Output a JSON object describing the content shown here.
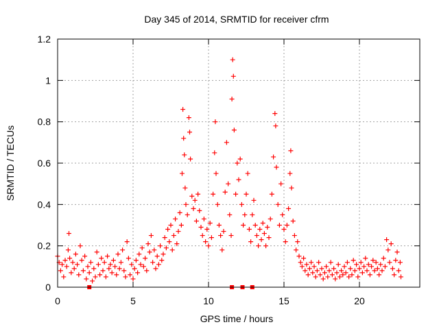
{
  "chart_data": {
    "type": "scatter",
    "title": "Day 345 of 2014, SRMTID for receiver cfrm",
    "xlabel": "GPS time / hours",
    "ylabel": "SRMTID / TECUs",
    "xlim": [
      0,
      24
    ],
    "ylim": [
      0,
      1.2
    ],
    "x_ticks": [
      0,
      5,
      10,
      15,
      20
    ],
    "x_tick_labels": [
      "0",
      "5",
      "10",
      "15",
      "20"
    ],
    "y_ticks": [
      0,
      0.2,
      0.4,
      0.6,
      0.8,
      1,
      1.2
    ],
    "y_tick_labels": [
      "0",
      "0.2",
      "0.4",
      "0.6",
      "0.8",
      "1",
      "1.2"
    ],
    "grid": true,
    "marker_color": "#ff0000",
    "series": [
      {
        "name": "SRMTID",
        "marker": "plus",
        "points": [
          [
            0.0,
            0.15
          ],
          [
            0.1,
            0.12
          ],
          [
            0.2,
            0.08
          ],
          [
            0.3,
            0.11
          ],
          [
            0.4,
            0.05
          ],
          [
            0.5,
            0.13
          ],
          [
            0.6,
            0.1
          ],
          [
            0.7,
            0.18
          ],
          [
            0.75,
            0.26
          ],
          [
            0.8,
            0.14
          ],
          [
            0.9,
            0.07
          ],
          [
            1.0,
            0.12
          ],
          [
            1.1,
            0.09
          ],
          [
            1.2,
            0.16
          ],
          [
            1.3,
            0.11
          ],
          [
            1.4,
            0.06
          ],
          [
            1.5,
            0.2
          ],
          [
            1.6,
            0.13
          ],
          [
            1.7,
            0.08
          ],
          [
            1.8,
            0.15
          ],
          [
            1.9,
            0.04
          ],
          [
            2.0,
            0.1
          ],
          [
            2.1,
            0.07
          ],
          [
            2.2,
            0.12
          ],
          [
            2.3,
            0.03
          ],
          [
            2.4,
            0.09
          ],
          [
            2.5,
            0.05
          ],
          [
            2.6,
            0.17
          ],
          [
            2.7,
            0.11
          ],
          [
            2.8,
            0.06
          ],
          [
            2.9,
            0.14
          ],
          [
            3.0,
            0.08
          ],
          [
            3.1,
            0.12
          ],
          [
            3.2,
            0.05
          ],
          [
            3.3,
            0.15
          ],
          [
            3.4,
            0.09
          ],
          [
            3.5,
            0.11
          ],
          [
            3.6,
            0.07
          ],
          [
            3.7,
            0.13
          ],
          [
            3.8,
            0.1
          ],
          [
            3.9,
            0.06
          ],
          [
            4.0,
            0.16
          ],
          [
            4.1,
            0.09
          ],
          [
            4.2,
            0.12
          ],
          [
            4.3,
            0.18
          ],
          [
            4.4,
            0.08
          ],
          [
            4.5,
            0.05
          ],
          [
            4.6,
            0.22
          ],
          [
            4.7,
            0.14
          ],
          [
            4.8,
            0.06
          ],
          [
            4.9,
            0.11
          ],
          [
            5.0,
            0.04
          ],
          [
            5.1,
            0.09
          ],
          [
            5.2,
            0.13
          ],
          [
            5.3,
            0.07
          ],
          [
            5.4,
            0.16
          ],
          [
            5.5,
            0.11
          ],
          [
            5.6,
            0.19
          ],
          [
            5.7,
            0.1
          ],
          [
            5.8,
            0.14
          ],
          [
            5.9,
            0.08
          ],
          [
            6.0,
            0.21
          ],
          [
            6.1,
            0.17
          ],
          [
            6.2,
            0.25
          ],
          [
            6.3,
            0.12
          ],
          [
            6.4,
            0.18
          ],
          [
            6.5,
            0.09
          ],
          [
            6.6,
            0.15
          ],
          [
            6.7,
            0.11
          ],
          [
            6.8,
            0.2
          ],
          [
            6.9,
            0.13
          ],
          [
            7.0,
            0.16
          ],
          [
            7.1,
            0.24
          ],
          [
            7.2,
            0.19
          ],
          [
            7.3,
            0.28
          ],
          [
            7.4,
            0.22
          ],
          [
            7.5,
            0.3
          ],
          [
            7.6,
            0.18
          ],
          [
            7.7,
            0.25
          ],
          [
            7.8,
            0.33
          ],
          [
            7.9,
            0.21
          ],
          [
            8.0,
            0.27
          ],
          [
            8.1,
            0.36
          ],
          [
            8.2,
            0.3
          ],
          [
            8.25,
            0.55
          ],
          [
            8.3,
            0.86
          ],
          [
            8.35,
            0.72
          ],
          [
            8.4,
            0.64
          ],
          [
            8.45,
            0.48
          ],
          [
            8.5,
            0.4
          ],
          [
            8.6,
            0.35
          ],
          [
            8.7,
            0.82
          ],
          [
            8.75,
            0.75
          ],
          [
            8.8,
            0.62
          ],
          [
            8.9,
            0.44
          ],
          [
            9.0,
            0.38
          ],
          [
            9.1,
            0.42
          ],
          [
            9.2,
            0.32
          ],
          [
            9.3,
            0.45
          ],
          [
            9.4,
            0.37
          ],
          [
            9.5,
            0.29
          ],
          [
            9.6,
            0.25
          ],
          [
            9.7,
            0.33
          ],
          [
            9.8,
            0.22
          ],
          [
            9.9,
            0.28
          ],
          [
            10.0,
            0.2
          ],
          [
            10.1,
            0.31
          ],
          [
            10.2,
            0.24
          ],
          [
            10.3,
            0.45
          ],
          [
            10.4,
            0.65
          ],
          [
            10.45,
            0.8
          ],
          [
            10.5,
            0.55
          ],
          [
            10.6,
            0.4
          ],
          [
            10.7,
            0.3
          ],
          [
            10.8,
            0.25
          ],
          [
            10.9,
            0.18
          ],
          [
            11.0,
            0.27
          ],
          [
            11.1,
            0.46
          ],
          [
            11.2,
            0.7
          ],
          [
            11.3,
            0.5
          ],
          [
            11.4,
            0.35
          ],
          [
            11.5,
            0.25
          ],
          [
            11.55,
            0.91
          ],
          [
            11.6,
            1.1
          ],
          [
            11.65,
            1.02
          ],
          [
            11.7,
            0.76
          ],
          [
            11.8,
            0.45
          ],
          [
            11.9,
            0.6
          ],
          [
            12.0,
            0.52
          ],
          [
            12.1,
            0.62
          ],
          [
            12.2,
            0.4
          ],
          [
            12.3,
            0.3
          ],
          [
            12.4,
            0.35
          ],
          [
            12.5,
            0.45
          ],
          [
            12.6,
            0.55
          ],
          [
            12.7,
            0.28
          ],
          [
            12.8,
            0.22
          ],
          [
            12.9,
            0.35
          ],
          [
            13.0,
            0.42
          ],
          [
            13.1,
            0.3
          ],
          [
            13.2,
            0.25
          ],
          [
            13.3,
            0.2
          ],
          [
            13.4,
            0.28
          ],
          [
            13.5,
            0.23
          ],
          [
            13.6,
            0.31
          ],
          [
            13.7,
            0.26
          ],
          [
            13.8,
            0.2
          ],
          [
            13.9,
            0.29
          ],
          [
            14.0,
            0.24
          ],
          [
            14.1,
            0.33
          ],
          [
            14.2,
            0.45
          ],
          [
            14.3,
            0.63
          ],
          [
            14.4,
            0.84
          ],
          [
            14.45,
            0.78
          ],
          [
            14.5,
            0.58
          ],
          [
            14.6,
            0.4
          ],
          [
            14.7,
            0.3
          ],
          [
            14.8,
            0.5
          ],
          [
            14.9,
            0.35
          ],
          [
            15.0,
            0.28
          ],
          [
            15.1,
            0.22
          ],
          [
            15.2,
            0.3
          ],
          [
            15.3,
            0.38
          ],
          [
            15.4,
            0.55
          ],
          [
            15.45,
            0.66
          ],
          [
            15.5,
            0.48
          ],
          [
            15.6,
            0.32
          ],
          [
            15.7,
            0.25
          ],
          [
            15.8,
            0.18
          ],
          [
            15.9,
            0.22
          ],
          [
            16.0,
            0.15
          ],
          [
            16.1,
            0.12
          ],
          [
            16.2,
            0.1
          ],
          [
            16.3,
            0.14
          ],
          [
            16.4,
            0.08
          ],
          [
            16.5,
            0.11
          ],
          [
            16.6,
            0.06
          ],
          [
            16.7,
            0.09
          ],
          [
            16.8,
            0.12
          ],
          [
            16.9,
            0.07
          ],
          [
            17.0,
            0.1
          ],
          [
            17.1,
            0.05
          ],
          [
            17.2,
            0.08
          ],
          [
            17.3,
            0.12
          ],
          [
            17.4,
            0.06
          ],
          [
            17.5,
            0.09
          ],
          [
            17.6,
            0.04
          ],
          [
            17.7,
            0.07
          ],
          [
            17.8,
            0.1
          ],
          [
            17.9,
            0.05
          ],
          [
            18.0,
            0.08
          ],
          [
            18.1,
            0.12
          ],
          [
            18.2,
            0.06
          ],
          [
            18.3,
            0.09
          ],
          [
            18.4,
            0.04
          ],
          [
            18.5,
            0.07
          ],
          [
            18.6,
            0.11
          ],
          [
            18.7,
            0.05
          ],
          [
            18.8,
            0.08
          ],
          [
            18.9,
            0.06
          ],
          [
            19.0,
            0.1
          ],
          [
            19.1,
            0.07
          ],
          [
            19.2,
            0.12
          ],
          [
            19.3,
            0.05
          ],
          [
            19.4,
            0.09
          ],
          [
            19.5,
            0.06
          ],
          [
            19.6,
            0.13
          ],
          [
            19.7,
            0.08
          ],
          [
            19.8,
            0.11
          ],
          [
            19.9,
            0.05
          ],
          [
            20.0,
            0.09
          ],
          [
            20.1,
            0.12
          ],
          [
            20.2,
            0.07
          ],
          [
            20.3,
            0.1
          ],
          [
            20.4,
            0.14
          ],
          [
            20.5,
            0.08
          ],
          [
            20.6,
            0.11
          ],
          [
            20.7,
            0.06
          ],
          [
            20.8,
            0.1
          ],
          [
            20.9,
            0.13
          ],
          [
            21.0,
            0.08
          ],
          [
            21.1,
            0.12
          ],
          [
            21.2,
            0.09
          ],
          [
            21.3,
            0.06
          ],
          [
            21.4,
            0.11
          ],
          [
            21.5,
            0.08
          ],
          [
            21.6,
            0.14
          ],
          [
            21.7,
            0.1
          ],
          [
            21.8,
            0.23
          ],
          [
            21.9,
            0.18
          ],
          [
            22.0,
            0.12
          ],
          [
            22.1,
            0.21
          ],
          [
            22.2,
            0.09
          ],
          [
            22.3,
            0.06
          ],
          [
            22.4,
            0.13
          ],
          [
            22.5,
            0.17
          ],
          [
            22.6,
            0.08
          ],
          [
            22.7,
            0.12
          ],
          [
            22.75,
            0.05
          ]
        ]
      },
      {
        "name": "zero-markers",
        "marker": "square",
        "points": [
          [
            2.1,
            0.0
          ],
          [
            11.55,
            0.0
          ],
          [
            12.25,
            0.0
          ],
          [
            12.9,
            0.0
          ]
        ]
      }
    ]
  }
}
